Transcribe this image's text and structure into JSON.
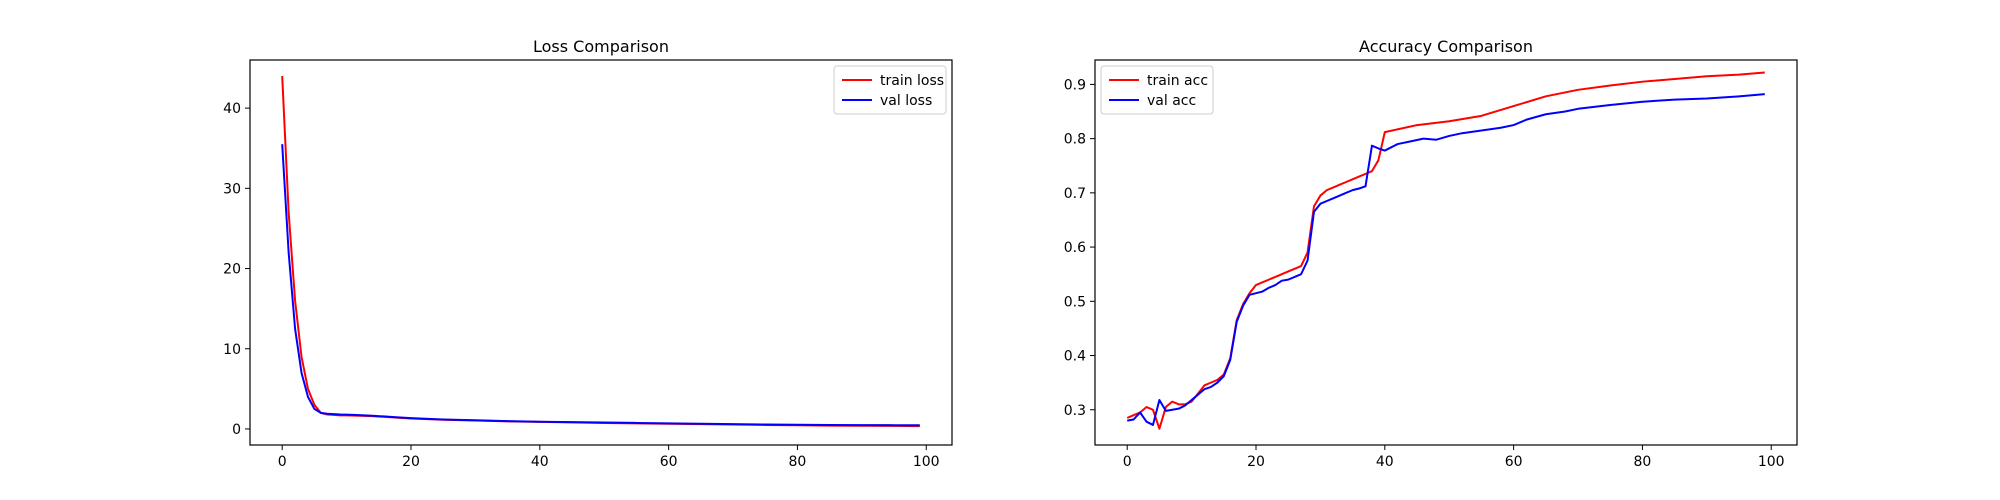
{
  "chart_data": [
    {
      "type": "line",
      "title": "Loss Comparison",
      "xlabel": "",
      "ylabel": "",
      "xlim": [
        -5,
        104
      ],
      "ylim": [
        -2,
        46
      ],
      "xticks": [
        0,
        20,
        40,
        60,
        80,
        100
      ],
      "yticks": [
        0,
        10,
        20,
        30,
        40
      ],
      "grid": false,
      "legend_position": "upper right",
      "series": [
        {
          "name": "train loss",
          "color": "#ff0000",
          "x": [
            0,
            1,
            2,
            3,
            4,
            5,
            6,
            7,
            8,
            9,
            10,
            12,
            14,
            16,
            18,
            20,
            25,
            30,
            35,
            40,
            45,
            50,
            55,
            60,
            65,
            70,
            75,
            80,
            85,
            90,
            95,
            99
          ],
          "y": [
            44,
            27,
            16,
            9,
            5,
            3,
            2,
            1.8,
            1.75,
            1.7,
            1.7,
            1.65,
            1.6,
            1.5,
            1.4,
            1.3,
            1.15,
            1.05,
            0.95,
            0.88,
            0.82,
            0.75,
            0.7,
            0.65,
            0.6,
            0.55,
            0.5,
            0.46,
            0.42,
            0.4,
            0.38,
            0.36
          ]
        },
        {
          "name": "val loss",
          "color": "#0000ff",
          "x": [
            0,
            1,
            2,
            3,
            4,
            5,
            6,
            7,
            8,
            9,
            10,
            12,
            14,
            16,
            18,
            20,
            25,
            30,
            35,
            40,
            45,
            50,
            55,
            60,
            65,
            70,
            75,
            80,
            85,
            90,
            95,
            99
          ],
          "y": [
            35.5,
            22,
            12.5,
            7,
            4,
            2.5,
            2,
            1.9,
            1.85,
            1.8,
            1.78,
            1.72,
            1.65,
            1.55,
            1.45,
            1.35,
            1.18,
            1.08,
            0.98,
            0.9,
            0.85,
            0.8,
            0.75,
            0.7,
            0.65,
            0.6,
            0.56,
            0.52,
            0.5,
            0.48,
            0.47,
            0.46
          ]
        }
      ]
    },
    {
      "type": "line",
      "title": "Accuracy Comparison",
      "xlabel": "",
      "ylabel": "",
      "xlim": [
        -5,
        104
      ],
      "ylim": [
        0.235,
        0.945
      ],
      "xticks": [
        0,
        20,
        40,
        60,
        80,
        100
      ],
      "yticks": [
        0.3,
        0.4,
        0.5,
        0.6,
        0.7,
        0.8,
        0.9
      ],
      "grid": false,
      "legend_position": "upper left",
      "series": [
        {
          "name": "train acc",
          "color": "#ff0000",
          "x": [
            0,
            1,
            2,
            3,
            4,
            5,
            6,
            7,
            8,
            9,
            10,
            11,
            12,
            13,
            14,
            15,
            16,
            17,
            18,
            19,
            20,
            21,
            22,
            23,
            24,
            25,
            26,
            27,
            28,
            29,
            30,
            31,
            32,
            33,
            34,
            35,
            36,
            37,
            38,
            39,
            40,
            45,
            50,
            55,
            60,
            65,
            70,
            75,
            80,
            85,
            90,
            95,
            99
          ],
          "y": [
            0.285,
            0.29,
            0.295,
            0.305,
            0.3,
            0.265,
            0.305,
            0.315,
            0.31,
            0.31,
            0.315,
            0.33,
            0.345,
            0.35,
            0.355,
            0.365,
            0.395,
            0.465,
            0.495,
            0.515,
            0.53,
            0.535,
            0.54,
            0.545,
            0.55,
            0.555,
            0.56,
            0.565,
            0.59,
            0.675,
            0.695,
            0.705,
            0.71,
            0.715,
            0.72,
            0.725,
            0.73,
            0.735,
            0.74,
            0.76,
            0.812,
            0.825,
            0.832,
            0.842,
            0.86,
            0.878,
            0.89,
            0.898,
            0.905,
            0.91,
            0.915,
            0.918,
            0.922
          ]
        },
        {
          "name": "val acc",
          "color": "#0000ff",
          "x": [
            0,
            1,
            2,
            3,
            4,
            5,
            6,
            7,
            8,
            9,
            10,
            11,
            12,
            13,
            14,
            15,
            16,
            17,
            18,
            19,
            20,
            21,
            22,
            23,
            24,
            25,
            26,
            27,
            28,
            29,
            30,
            31,
            32,
            33,
            34,
            35,
            36,
            37,
            38,
            39,
            40,
            42,
            44,
            46,
            48,
            50,
            52,
            55,
            58,
            60,
            62,
            65,
            68,
            70,
            75,
            80,
            85,
            90,
            95,
            99
          ],
          "y": [
            0.28,
            0.282,
            0.295,
            0.278,
            0.272,
            0.318,
            0.298,
            0.3,
            0.302,
            0.308,
            0.318,
            0.328,
            0.338,
            0.342,
            0.35,
            0.362,
            0.392,
            0.462,
            0.492,
            0.512,
            0.515,
            0.518,
            0.525,
            0.53,
            0.538,
            0.54,
            0.545,
            0.55,
            0.575,
            0.665,
            0.68,
            0.685,
            0.69,
            0.695,
            0.7,
            0.705,
            0.708,
            0.712,
            0.787,
            0.782,
            0.778,
            0.79,
            0.795,
            0.8,
            0.798,
            0.805,
            0.81,
            0.815,
            0.82,
            0.825,
            0.835,
            0.845,
            0.85,
            0.855,
            0.862,
            0.868,
            0.872,
            0.874,
            0.878,
            0.882
          ]
        }
      ]
    }
  ]
}
